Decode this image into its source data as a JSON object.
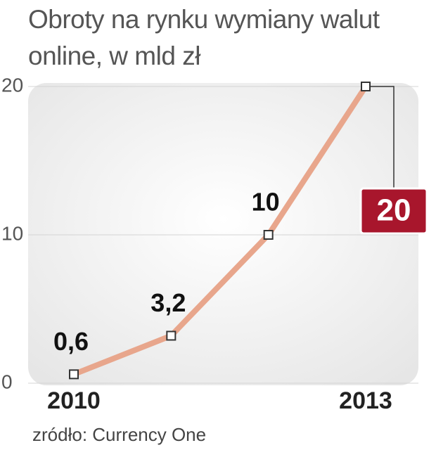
{
  "chart_data": {
    "type": "line",
    "title": "Obroty na rynku wymiany walut online, w mld zł",
    "source": "zródło: Currency One",
    "categories": [
      "2010",
      null,
      null,
      "2013"
    ],
    "values": [
      0.6,
      3.2,
      10,
      20
    ],
    "value_labels": [
      "0,6",
      "3,2",
      "10",
      "20"
    ],
    "color": "#e8a68c",
    "ylim": [
      0,
      20
    ],
    "yticks": [
      0,
      10,
      20
    ],
    "grid": true
  }
}
